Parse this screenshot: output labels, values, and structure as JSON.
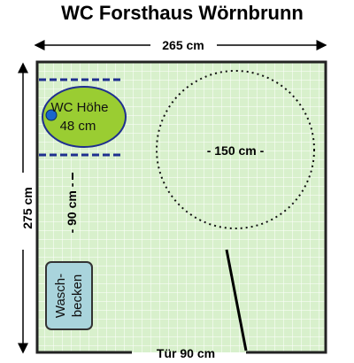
{
  "title": "WC Forsthaus Wörnbrunn",
  "dimensions": {
    "width": "265 cm",
    "depth": "275 cm",
    "turning_circle": "- 150 cm -",
    "clearance_side": "- 90 cm -",
    "door": "Tür 90 cm"
  },
  "wc": {
    "line1": "WC Höhe",
    "line2": "48 cm"
  },
  "sink": {
    "line1": "Wasch-",
    "line2": "becken"
  },
  "colors": {
    "floor": "#d8f0cc",
    "grid": "#ffffff",
    "toilet": "#9acd32",
    "toilet_dot": "#1a66cc",
    "sink": "#a9d4dc",
    "wall": "#222222",
    "rail": "#1f2f8f"
  }
}
